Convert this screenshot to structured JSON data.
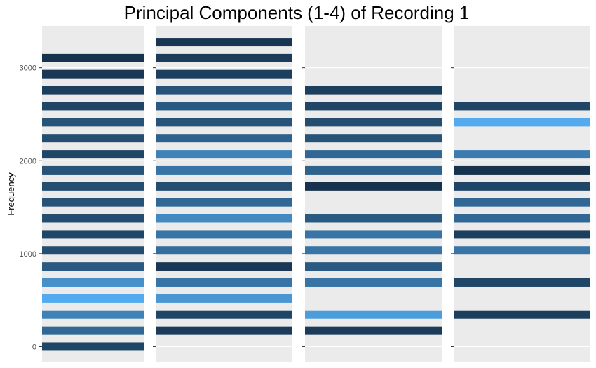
{
  "chart_data": {
    "type": "bar",
    "title": "Principal Components (1-4) of Recording 1",
    "xlabel": "",
    "ylabel": "Frequency",
    "ylim": [
      -170,
      3450
    ],
    "yticks": [
      0,
      1000,
      2000,
      3000
    ],
    "panels": [
      {
        "bars": [
          {
            "y": 0,
            "intensity": 0.8
          },
          {
            "y": 172,
            "intensity": 0.55
          },
          {
            "y": 345,
            "intensity": 0.35
          },
          {
            "y": 517,
            "intensity": 0.05
          },
          {
            "y": 690,
            "intensity": 0.25
          },
          {
            "y": 862,
            "intensity": 0.65
          },
          {
            "y": 1035,
            "intensity": 0.75
          },
          {
            "y": 1207,
            "intensity": 0.8
          },
          {
            "y": 1380,
            "intensity": 0.75
          },
          {
            "y": 1552,
            "intensity": 0.7
          },
          {
            "y": 1724,
            "intensity": 0.75
          },
          {
            "y": 1897,
            "intensity": 0.7
          },
          {
            "y": 2069,
            "intensity": 0.8
          },
          {
            "y": 2242,
            "intensity": 0.75
          },
          {
            "y": 2414,
            "intensity": 0.7
          },
          {
            "y": 2587,
            "intensity": 0.8
          },
          {
            "y": 2759,
            "intensity": 0.85
          },
          {
            "y": 2932,
            "intensity": 0.9
          },
          {
            "y": 3104,
            "intensity": 0.95
          }
        ]
      },
      {
        "bars": [
          {
            "y": 172,
            "intensity": 0.88
          },
          {
            "y": 345,
            "intensity": 0.8
          },
          {
            "y": 517,
            "intensity": 0.2
          },
          {
            "y": 690,
            "intensity": 0.45
          },
          {
            "y": 862,
            "intensity": 0.9
          },
          {
            "y": 1035,
            "intensity": 0.5
          },
          {
            "y": 1207,
            "intensity": 0.45
          },
          {
            "y": 1380,
            "intensity": 0.3
          },
          {
            "y": 1552,
            "intensity": 0.55
          },
          {
            "y": 1724,
            "intensity": 0.75
          },
          {
            "y": 1897,
            "intensity": 0.45
          },
          {
            "y": 2069,
            "intensity": 0.35
          },
          {
            "y": 2242,
            "intensity": 0.6
          },
          {
            "y": 2414,
            "intensity": 0.7
          },
          {
            "y": 2587,
            "intensity": 0.65
          },
          {
            "y": 2759,
            "intensity": 0.7
          },
          {
            "y": 2932,
            "intensity": 0.85
          },
          {
            "y": 3104,
            "intensity": 0.88
          },
          {
            "y": 3276,
            "intensity": 0.92
          }
        ]
      },
      {
        "bars": [
          {
            "y": 172,
            "intensity": 0.88
          },
          {
            "y": 345,
            "intensity": 0.15
          },
          {
            "y": 690,
            "intensity": 0.45
          },
          {
            "y": 862,
            "intensity": 0.65
          },
          {
            "y": 1035,
            "intensity": 0.45
          },
          {
            "y": 1207,
            "intensity": 0.45
          },
          {
            "y": 1380,
            "intensity": 0.65
          },
          {
            "y": 1724,
            "intensity": 0.95
          },
          {
            "y": 1897,
            "intensity": 0.6
          },
          {
            "y": 2069,
            "intensity": 0.55
          },
          {
            "y": 2242,
            "intensity": 0.7
          },
          {
            "y": 2414,
            "intensity": 0.75
          },
          {
            "y": 2587,
            "intensity": 0.8
          },
          {
            "y": 2759,
            "intensity": 0.85
          }
        ]
      },
      {
        "bars": [
          {
            "y": 345,
            "intensity": 0.85
          },
          {
            "y": 690,
            "intensity": 0.8
          },
          {
            "y": 1035,
            "intensity": 0.45
          },
          {
            "y": 1207,
            "intensity": 0.85
          },
          {
            "y": 1380,
            "intensity": 0.55
          },
          {
            "y": 1552,
            "intensity": 0.55
          },
          {
            "y": 1724,
            "intensity": 0.8
          },
          {
            "y": 1897,
            "intensity": 0.95
          },
          {
            "y": 2069,
            "intensity": 0.4
          },
          {
            "y": 2414,
            "intensity": 0.05
          },
          {
            "y": 2587,
            "intensity": 0.8
          }
        ]
      }
    ],
    "colors": {
      "low": "#56b1f7",
      "high": "#132b43",
      "panel_background": "#ebebeb",
      "gridline": "#ffffff",
      "tick_mark": "#333333"
    },
    "legend": "none",
    "grid": true
  }
}
